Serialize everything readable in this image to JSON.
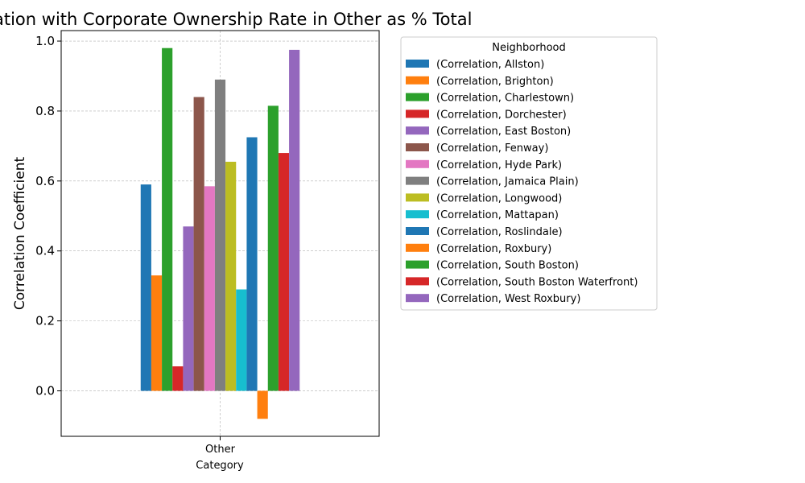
{
  "chart_data": {
    "type": "bar",
    "title": "ation with Corporate Ownership Rate in Other as % Total",
    "xlabel": "Category",
    "ylabel": "Correlation Coefficient",
    "categories": [
      "Other"
    ],
    "ylim": [
      -0.13,
      1.03
    ],
    "yticks": [
      "0.0",
      "0.2",
      "0.4",
      "0.6",
      "0.8",
      "1.0"
    ],
    "grid": true,
    "legend_title": "Neighborhood",
    "legend_position": "outside-right",
    "series": [
      {
        "name": "(Correlation, Allston)",
        "color": "#1f77b4",
        "values": [
          0.59
        ]
      },
      {
        "name": "(Correlation, Brighton)",
        "color": "#ff7f0e",
        "values": [
          0.33
        ]
      },
      {
        "name": "(Correlation, Charlestown)",
        "color": "#2ca02c",
        "values": [
          0.98
        ]
      },
      {
        "name": "(Correlation, Dorchester)",
        "color": "#d62728",
        "values": [
          0.07
        ]
      },
      {
        "name": "(Correlation, East Boston)",
        "color": "#9467bd",
        "values": [
          0.47
        ]
      },
      {
        "name": "(Correlation, Fenway)",
        "color": "#8c564b",
        "values": [
          0.84
        ]
      },
      {
        "name": "(Correlation, Hyde Park)",
        "color": "#e377c2",
        "values": [
          0.585
        ]
      },
      {
        "name": "(Correlation, Jamaica Plain)",
        "color": "#7f7f7f",
        "values": [
          0.89
        ]
      },
      {
        "name": "(Correlation, Longwood)",
        "color": "#bcbd22",
        "values": [
          0.655
        ]
      },
      {
        "name": "(Correlation, Mattapan)",
        "color": "#17becf",
        "values": [
          0.29
        ]
      },
      {
        "name": "(Correlation, Roslindale)",
        "color": "#1f77b4",
        "values": [
          0.725
        ]
      },
      {
        "name": "(Correlation, Roxbury)",
        "color": "#ff7f0e",
        "values": [
          -0.08
        ]
      },
      {
        "name": "(Correlation, South Boston)",
        "color": "#2ca02c",
        "values": [
          0.815
        ]
      },
      {
        "name": "(Correlation, South Boston Waterfront)",
        "color": "#d62728",
        "values": [
          0.68
        ]
      },
      {
        "name": "(Correlation, West Roxbury)",
        "color": "#9467bd",
        "values": [
          0.975
        ]
      }
    ]
  }
}
